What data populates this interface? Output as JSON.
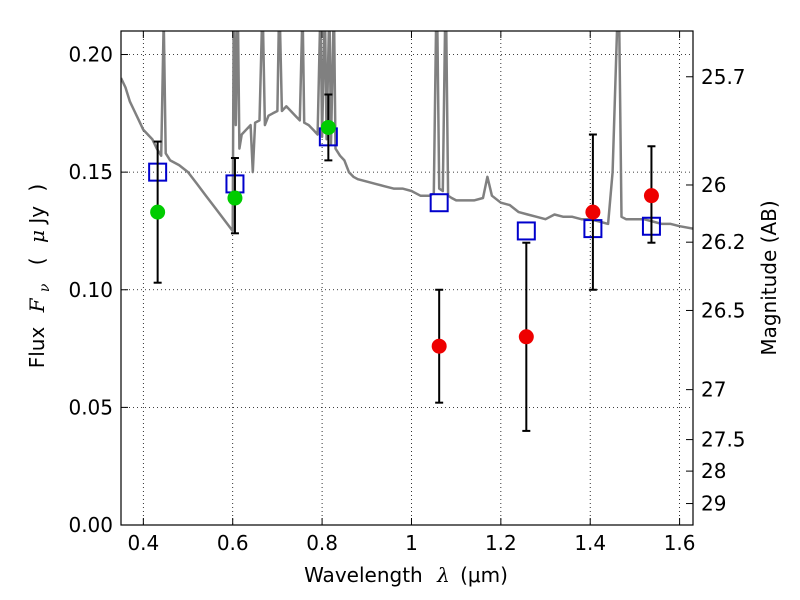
{
  "chart_data": {
    "type": "scatter",
    "xlabel": "Wavelength",
    "xlabel_symbol": "λ",
    "xlabel_unit": "(μm)",
    "ylabel": "Flux",
    "ylabel_symbol": "F",
    "ylabel_symbol_sub": "ν",
    "ylabel_unit_open": "(",
    "ylabel_unit_mu": "μ",
    "ylabel_unit": "Jy",
    "ylabel_unit_close": ")",
    "y2label": "Magnitude (AB)",
    "xlim": [
      0.35,
      1.63
    ],
    "ylim": [
      0.0,
      0.21
    ],
    "grid": true,
    "x_ticks": [
      {
        "value": 0.4,
        "label": "0.4"
      },
      {
        "value": 0.6,
        "label": "0.6"
      },
      {
        "value": 0.8,
        "label": "0.8"
      },
      {
        "value": 1.0,
        "label": "1"
      },
      {
        "value": 1.2,
        "label": "1.2"
      },
      {
        "value": 1.4,
        "label": "1.4"
      },
      {
        "value": 1.6,
        "label": "1.6"
      }
    ],
    "y_ticks": [
      {
        "value": 0.0,
        "label": "0.00"
      },
      {
        "value": 0.05,
        "label": "0.05"
      },
      {
        "value": 0.1,
        "label": "0.10"
      },
      {
        "value": 0.15,
        "label": "0.15"
      },
      {
        "value": 0.2,
        "label": "0.20"
      }
    ],
    "y2_ticks": [
      {
        "value": 25.7,
        "label": "25.7"
      },
      {
        "value": 26.0,
        "label": "26"
      },
      {
        "value": 26.2,
        "label": "26.2"
      },
      {
        "value": 26.5,
        "label": "26.5"
      },
      {
        "value": 27.0,
        "label": "27"
      },
      {
        "value": 27.5,
        "label": "27.5"
      },
      {
        "value": 28.0,
        "label": "28"
      },
      {
        "value": 29.0,
        "label": "29"
      }
    ],
    "series": [
      {
        "kind": "line",
        "color": "#808080",
        "points": [
          [
            0.35,
            0.19
          ],
          [
            0.36,
            0.186
          ],
          [
            0.37,
            0.18
          ],
          [
            0.38,
            0.176
          ],
          [
            0.39,
            0.172
          ],
          [
            0.4,
            0.168
          ],
          [
            0.41,
            0.166
          ],
          [
            0.42,
            0.164
          ],
          [
            0.43,
            0.16
          ],
          [
            0.44,
            0.157
          ],
          [
            0.445,
            0.21
          ],
          [
            0.446,
            0.21
          ],
          [
            0.45,
            0.158
          ],
          [
            0.46,
            0.155
          ],
          [
            0.48,
            0.153
          ],
          [
            0.5,
            0.15
          ],
          [
            0.52,
            0.145
          ],
          [
            0.54,
            0.14
          ],
          [
            0.56,
            0.135
          ],
          [
            0.58,
            0.13
          ],
          [
            0.6,
            0.125
          ],
          [
            0.602,
            0.21
          ],
          [
            0.604,
            0.21
          ],
          [
            0.607,
            0.17
          ],
          [
            0.61,
            0.21
          ],
          [
            0.612,
            0.21
          ],
          [
            0.615,
            0.16
          ],
          [
            0.62,
            0.166
          ],
          [
            0.63,
            0.168
          ],
          [
            0.64,
            0.17
          ],
          [
            0.645,
            0.15
          ],
          [
            0.65,
            0.171
          ],
          [
            0.66,
            0.172
          ],
          [
            0.665,
            0.21
          ],
          [
            0.668,
            0.21
          ],
          [
            0.672,
            0.17
          ],
          [
            0.68,
            0.174
          ],
          [
            0.69,
            0.175
          ],
          [
            0.7,
            0.176
          ],
          [
            0.703,
            0.21
          ],
          [
            0.706,
            0.21
          ],
          [
            0.71,
            0.176
          ],
          [
            0.72,
            0.178
          ],
          [
            0.73,
            0.176
          ],
          [
            0.74,
            0.174
          ],
          [
            0.75,
            0.172
          ],
          [
            0.755,
            0.21
          ],
          [
            0.757,
            0.21
          ],
          [
            0.76,
            0.171
          ],
          [
            0.77,
            0.17
          ],
          [
            0.78,
            0.168
          ],
          [
            0.79,
            0.166
          ],
          [
            0.795,
            0.21
          ],
          [
            0.797,
            0.21
          ],
          [
            0.8,
            0.165
          ],
          [
            0.805,
            0.21
          ],
          [
            0.807,
            0.21
          ],
          [
            0.81,
            0.164
          ],
          [
            0.815,
            0.21
          ],
          [
            0.817,
            0.21
          ],
          [
            0.82,
            0.162
          ],
          [
            0.825,
            0.21
          ],
          [
            0.827,
            0.21
          ],
          [
            0.83,
            0.16
          ],
          [
            0.84,
            0.157
          ],
          [
            0.85,
            0.155
          ],
          [
            0.86,
            0.15
          ],
          [
            0.87,
            0.148
          ],
          [
            0.88,
            0.147
          ],
          [
            0.9,
            0.146
          ],
          [
            0.92,
            0.145
          ],
          [
            0.94,
            0.144
          ],
          [
            0.96,
            0.143
          ],
          [
            0.98,
            0.143
          ],
          [
            1.0,
            0.142
          ],
          [
            1.01,
            0.141
          ],
          [
            1.02,
            0.14
          ],
          [
            1.04,
            0.14
          ],
          [
            1.05,
            0.141
          ],
          [
            1.055,
            0.21
          ],
          [
            1.058,
            0.21
          ],
          [
            1.062,
            0.143
          ],
          [
            1.07,
            0.142
          ],
          [
            1.075,
            0.21
          ],
          [
            1.078,
            0.21
          ],
          [
            1.082,
            0.14
          ],
          [
            1.09,
            0.139
          ],
          [
            1.1,
            0.138
          ],
          [
            1.12,
            0.138
          ],
          [
            1.14,
            0.138
          ],
          [
            1.16,
            0.139
          ],
          [
            1.17,
            0.148
          ],
          [
            1.18,
            0.14
          ],
          [
            1.2,
            0.137
          ],
          [
            1.22,
            0.136
          ],
          [
            1.24,
            0.133
          ],
          [
            1.26,
            0.132
          ],
          [
            1.28,
            0.131
          ],
          [
            1.3,
            0.13
          ],
          [
            1.32,
            0.132
          ],
          [
            1.34,
            0.131
          ],
          [
            1.36,
            0.131
          ],
          [
            1.38,
            0.13
          ],
          [
            1.4,
            0.13
          ],
          [
            1.42,
            0.129
          ],
          [
            1.44,
            0.128
          ],
          [
            1.45,
            0.15
          ],
          [
            1.46,
            0.21
          ],
          [
            1.465,
            0.21
          ],
          [
            1.47,
            0.131
          ],
          [
            1.48,
            0.13
          ],
          [
            1.5,
            0.13
          ],
          [
            1.52,
            0.13
          ],
          [
            1.54,
            0.129
          ],
          [
            1.56,
            0.128
          ],
          [
            1.58,
            0.128
          ],
          [
            1.6,
            0.127
          ],
          [
            1.63,
            0.126
          ]
        ]
      },
      {
        "kind": "squares",
        "color": "#0000cc",
        "points": [
          [
            0.432,
            0.15
          ],
          [
            0.605,
            0.145
          ],
          [
            0.814,
            0.165
          ],
          [
            1.062,
            0.137
          ],
          [
            1.257,
            0.125
          ],
          [
            1.406,
            0.126
          ],
          [
            1.537,
            0.127
          ]
        ]
      },
      {
        "kind": "green_points",
        "color": "#00cc00",
        "points": [
          {
            "x": 0.432,
            "y": 0.133,
            "ylo": 0.103,
            "yhi": 0.163
          },
          {
            "x": 0.605,
            "y": 0.139,
            "ylo": 0.124,
            "yhi": 0.156
          },
          {
            "x": 0.814,
            "y": 0.169,
            "ylo": 0.155,
            "yhi": 0.183
          }
        ]
      },
      {
        "kind": "red_points",
        "color": "#ee0000",
        "points": [
          {
            "x": 1.062,
            "y": 0.076,
            "ylo": 0.052,
            "yhi": 0.1
          },
          {
            "x": 1.257,
            "y": 0.08,
            "ylo": 0.04,
            "yhi": 0.12
          },
          {
            "x": 1.406,
            "y": 0.133,
            "ylo": 0.1,
            "yhi": 0.166
          },
          {
            "x": 1.537,
            "y": 0.14,
            "ylo": 0.12,
            "yhi": 0.161
          }
        ]
      }
    ]
  }
}
